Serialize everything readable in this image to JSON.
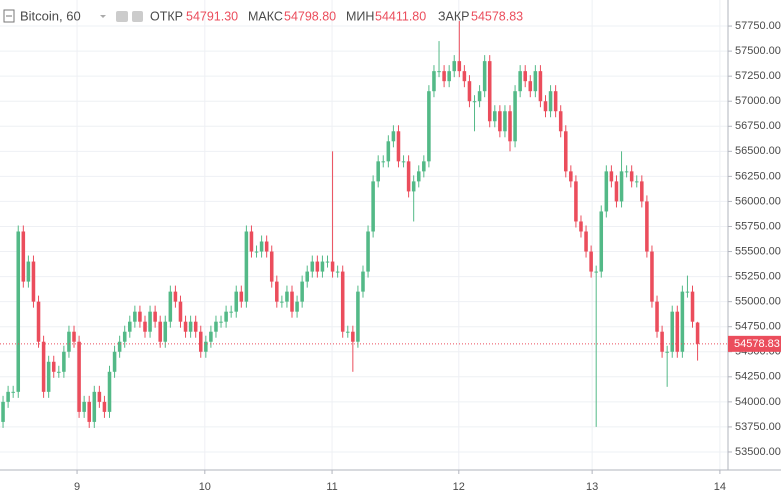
{
  "header": {
    "symbol": "Bitcoin, 60",
    "open_label": "ОТКР",
    "open": "54791.30",
    "high_label": "МАКС",
    "high": "54798.80",
    "low_label": "МИН",
    "low": "54411.80",
    "close_label": "ЗАКР",
    "close": "54578.83"
  },
  "chart_data": {
    "type": "candlestick",
    "up_color": "#53b987",
    "down_color": "#eb4d5c",
    "grid": true,
    "xlim": [
      -0.6,
      143
    ],
    "ylim": [
      53320,
      58010
    ],
    "xticks": [
      {
        "value": 14.6,
        "label": "9"
      },
      {
        "value": 39.8,
        "label": "10"
      },
      {
        "value": 64.9,
        "label": "11"
      },
      {
        "value": 89.9,
        "label": "12"
      },
      {
        "value": 116.2,
        "label": "13"
      },
      {
        "value": 141.4,
        "label": "14"
      }
    ],
    "yticks": [
      {
        "value": 53500,
        "label": "53500.00"
      },
      {
        "value": 53750,
        "label": "53750.00"
      },
      {
        "value": 54000,
        "label": "54000.00"
      },
      {
        "value": 54250,
        "label": "54250.00"
      },
      {
        "value": 54500,
        "label": "54500.00"
      },
      {
        "value": 54750,
        "label": "54750.00"
      },
      {
        "value": 55000,
        "label": "55000.00"
      },
      {
        "value": 55250,
        "label": "55250.00"
      },
      {
        "value": 55500,
        "label": "55500.00"
      },
      {
        "value": 55750,
        "label": "55750.00"
      },
      {
        "value": 56000,
        "label": "56000.00"
      },
      {
        "value": 56250,
        "label": "56250.00"
      },
      {
        "value": 56500,
        "label": "56500.00"
      },
      {
        "value": 56750,
        "label": "56750.00"
      },
      {
        "value": 57000,
        "label": "57000.00"
      },
      {
        "value": 57250,
        "label": "57250.00"
      },
      {
        "value": 57500,
        "label": "57500.00"
      },
      {
        "value": 57750,
        "label": "57750.00"
      }
    ],
    "last_price": {
      "value": 54578.83,
      "label": "54578.83"
    },
    "candles": [
      [
        53800,
        54060,
        53740,
        54000
      ],
      [
        54000,
        54160,
        53940,
        54100
      ],
      [
        54100,
        54160,
        54040,
        54100
      ],
      [
        54100,
        55760,
        54040,
        55700
      ],
      [
        55700,
        55760,
        55140,
        55200
      ],
      [
        55200,
        55460,
        55140,
        55400
      ],
      [
        55400,
        55460,
        54940,
        55000
      ],
      [
        55000,
        55060,
        54540,
        54600
      ],
      [
        54600,
        54660,
        54040,
        54100
      ],
      [
        54100,
        54460,
        54040,
        54400
      ],
      [
        54400,
        54460,
        54240,
        54300
      ],
      [
        54300,
        54360,
        54240,
        54300
      ],
      [
        54300,
        54560,
        54240,
        54500
      ],
      [
        54500,
        54760,
        54440,
        54700
      ],
      [
        54700,
        54760,
        54540,
        54600
      ],
      [
        54600,
        54660,
        53840,
        53900
      ],
      [
        53900,
        54060,
        53840,
        54000
      ],
      [
        54000,
        54060,
        53740,
        53800
      ],
      [
        53800,
        54160,
        53740,
        54100
      ],
      [
        54100,
        54160,
        53940,
        54000
      ],
      [
        54000,
        54060,
        53840,
        53900
      ],
      [
        53900,
        54360,
        53840,
        54300
      ],
      [
        54300,
        54560,
        54240,
        54500
      ],
      [
        54500,
        54660,
        54440,
        54600
      ],
      [
        54600,
        54760,
        54540,
        54700
      ],
      [
        54700,
        54860,
        54640,
        54800
      ],
      [
        54800,
        54960,
        54740,
        54900
      ],
      [
        54900,
        54960,
        54740,
        54800
      ],
      [
        54800,
        54860,
        54640,
        54700
      ],
      [
        54700,
        54960,
        54640,
        54900
      ],
      [
        54900,
        54960,
        54740,
        54800
      ],
      [
        54800,
        54860,
        54540,
        54600
      ],
      [
        54600,
        54860,
        54540,
        54800
      ],
      [
        54800,
        55160,
        54740,
        55100
      ],
      [
        55100,
        55160,
        54940,
        55000
      ],
      [
        55000,
        55060,
        54740,
        54800
      ],
      [
        54800,
        54860,
        54640,
        54700
      ],
      [
        54700,
        54860,
        54640,
        54800
      ],
      [
        54800,
        54860,
        54640,
        54700
      ],
      [
        54700,
        54760,
        54440,
        54500
      ],
      [
        54500,
        54660,
        54440,
        54600
      ],
      [
        54600,
        54760,
        54540,
        54700
      ],
      [
        54700,
        54860,
        54640,
        54800
      ],
      [
        54800,
        54860,
        54740,
        54800
      ],
      [
        54800,
        54960,
        54740,
        54900
      ],
      [
        54900,
        54960,
        54840,
        54900
      ],
      [
        54900,
        55160,
        54840,
        55100
      ],
      [
        55100,
        55160,
        54940,
        55000
      ],
      [
        55000,
        55760,
        54940,
        55700
      ],
      [
        55700,
        55760,
        55440,
        55500
      ],
      [
        55500,
        55560,
        55440,
        55500
      ],
      [
        55500,
        55660,
        55440,
        55600
      ],
      [
        55600,
        55660,
        55440,
        55500
      ],
      [
        55500,
        55560,
        55140,
        55200
      ],
      [
        55200,
        55260,
        54940,
        55000
      ],
      [
        55000,
        55060,
        54940,
        55000
      ],
      [
        55000,
        55160,
        54940,
        55100
      ],
      [
        55100,
        55160,
        54840,
        54900
      ],
      [
        54900,
        55060,
        54840,
        55000
      ],
      [
        55000,
        55260,
        54940,
        55200
      ],
      [
        55200,
        55360,
        55140,
        55300
      ],
      [
        55300,
        55460,
        55240,
        55400
      ],
      [
        55400,
        55460,
        55240,
        55300
      ],
      [
        55300,
        55460,
        55240,
        55400
      ],
      [
        55400,
        55460,
        55340,
        55400
      ],
      [
        55400,
        56500,
        55240,
        55300
      ],
      [
        55300,
        55360,
        55240,
        55300
      ],
      [
        55300,
        55360,
        54640,
        54700
      ],
      [
        54700,
        54760,
        54640,
        54700
      ],
      [
        54700,
        54760,
        54300,
        54600
      ],
      [
        54600,
        55160,
        54540,
        55100
      ],
      [
        55100,
        55360,
        55040,
        55300
      ],
      [
        55300,
        55760,
        55240,
        55700
      ],
      [
        55700,
        56260,
        55640,
        56200
      ],
      [
        56200,
        56460,
        56140,
        56400
      ],
      [
        56400,
        56460,
        56340,
        56400
      ],
      [
        56400,
        56660,
        56340,
        56600
      ],
      [
        56600,
        56760,
        56540,
        56700
      ],
      [
        56700,
        56760,
        56340,
        56400
      ],
      [
        56400,
        56460,
        56340,
        56400
      ],
      [
        56400,
        56460,
        56040,
        56100
      ],
      [
        56100,
        56260,
        55800,
        56200
      ],
      [
        56200,
        56360,
        56140,
        56300
      ],
      [
        56300,
        56460,
        56240,
        56400
      ],
      [
        56400,
        57160,
        56340,
        57100
      ],
      [
        57100,
        57360,
        57040,
        57300
      ],
      [
        57300,
        57600,
        57240,
        57300
      ],
      [
        57300,
        57360,
        57140,
        57200
      ],
      [
        57200,
        57360,
        57140,
        57300
      ],
      [
        57300,
        57460,
        57240,
        57400
      ],
      [
        57400,
        57800,
        57240,
        57300
      ],
      [
        57300,
        57360,
        57140,
        57200
      ],
      [
        57200,
        57260,
        56940,
        57000
      ],
      [
        57000,
        57060,
        56700,
        57000
      ],
      [
        57000,
        57160,
        56940,
        57100
      ],
      [
        57100,
        57460,
        57040,
        57400
      ],
      [
        57400,
        57460,
        56740,
        56800
      ],
      [
        56800,
        56960,
        56740,
        56900
      ],
      [
        56900,
        56960,
        56640,
        56700
      ],
      [
        56700,
        56960,
        56640,
        56900
      ],
      [
        56900,
        56960,
        56500,
        56600
      ],
      [
        56600,
        57160,
        56540,
        57100
      ],
      [
        57100,
        57360,
        57040,
        57300
      ],
      [
        57300,
        57360,
        57140,
        57200
      ],
      [
        57200,
        57260,
        57040,
        57100
      ],
      [
        57100,
        57360,
        57040,
        57300
      ],
      [
        57300,
        57360,
        56940,
        57000
      ],
      [
        57000,
        57060,
        56840,
        56900
      ],
      [
        56900,
        57160,
        56840,
        57100
      ],
      [
        57100,
        57160,
        56840,
        56900
      ],
      [
        56900,
        56960,
        56640,
        56700
      ],
      [
        56700,
        56760,
        56240,
        56300
      ],
      [
        56300,
        56360,
        56140,
        56200
      ],
      [
        56200,
        56260,
        55740,
        55800
      ],
      [
        55800,
        55860,
        55640,
        55700
      ],
      [
        55700,
        55760,
        55440,
        55500
      ],
      [
        55500,
        55560,
        55240,
        55300
      ],
      [
        55300,
        55360,
        53750,
        55300
      ],
      [
        55300,
        55960,
        55240,
        55900
      ],
      [
        55900,
        56360,
        55840,
        56300
      ],
      [
        56300,
        56360,
        56140,
        56200
      ],
      [
        56200,
        56260,
        55940,
        56000
      ],
      [
        56000,
        56500,
        55940,
        56300
      ],
      [
        56300,
        56360,
        56240,
        56300
      ],
      [
        56300,
        56360,
        56140,
        56200
      ],
      [
        56200,
        56260,
        56140,
        56200
      ],
      [
        56200,
        56260,
        55940,
        56000
      ],
      [
        56000,
        56060,
        55440,
        55500
      ],
      [
        55500,
        55560,
        54940,
        55000
      ],
      [
        55000,
        55060,
        54640,
        54700
      ],
      [
        54700,
        54760,
        54440,
        54500
      ],
      [
        54500,
        54560,
        54150,
        54500
      ],
      [
        54500,
        54960,
        54440,
        54900
      ],
      [
        54900,
        54960,
        54440,
        54500
      ],
      [
        54500,
        55160,
        54440,
        55100
      ],
      [
        55100,
        55260,
        55040,
        55100
      ],
      [
        55100,
        55160,
        54740,
        54800
      ],
      [
        54791.3,
        54798.8,
        54411.8,
        54578.83
      ]
    ]
  }
}
